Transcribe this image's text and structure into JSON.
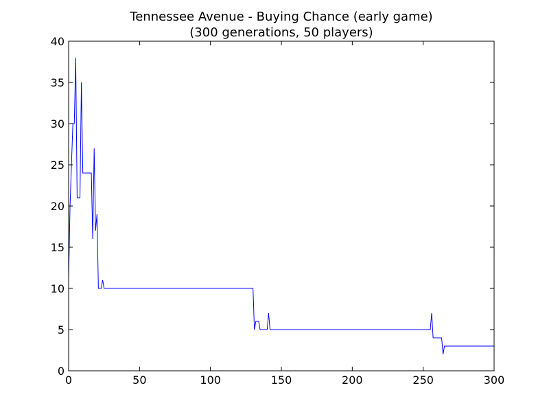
{
  "chart_data": {
    "type": "line",
    "title": "Tennessee Avenue - Buying Chance (early game)",
    "subtitle": "(300 generations, 50 players)",
    "xlabel": "",
    "ylabel": "",
    "xlim": [
      0,
      300
    ],
    "ylim": [
      0,
      40
    ],
    "xticks": [
      0,
      50,
      100,
      150,
      200,
      250,
      300
    ],
    "yticks": [
      0,
      5,
      10,
      15,
      20,
      25,
      30,
      35,
      40
    ],
    "grid": false,
    "colors": {
      "line": "#0000ff",
      "axes": "#000000",
      "background": "#ffffff"
    },
    "series": [
      {
        "x": [
          0,
          1,
          3,
          4,
          5,
          6,
          7,
          8,
          9,
          10,
          11,
          12,
          13,
          14,
          15,
          16,
          17,
          18,
          19,
          20,
          21,
          22,
          23,
          24,
          25,
          130,
          131,
          132,
          133,
          134,
          135,
          140,
          141,
          142,
          143,
          255,
          256,
          257,
          263,
          264,
          265,
          300
        ],
        "y": [
          11,
          20,
          30,
          30,
          38,
          21,
          21,
          21,
          35,
          24,
          24,
          24,
          24,
          24,
          24,
          24,
          16,
          27,
          17,
          19,
          10,
          10,
          10,
          11,
          10,
          10,
          5,
          6,
          6,
          6,
          5,
          5,
          7,
          5,
          5,
          5,
          7,
          4,
          4,
          2,
          3,
          3
        ]
      }
    ]
  }
}
